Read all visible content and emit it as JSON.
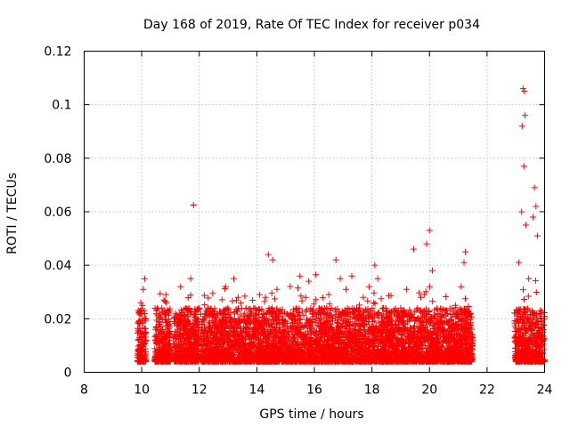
{
  "chart_data": {
    "type": "scatter",
    "title": "Day 168 of 2019, Rate Of TEC Index for receiver p034",
    "xlabel": "GPS time / hours",
    "ylabel": "ROTI / TECUs",
    "xlim": [
      8,
      24
    ],
    "ylim": [
      0,
      0.12
    ],
    "xticks": [
      8,
      10,
      12,
      14,
      16,
      18,
      20,
      22,
      24
    ],
    "yticks": [
      0,
      0.02,
      0.04,
      0.06,
      0.08,
      0.1,
      0.12
    ],
    "xtick_labels": [
      "8",
      "10",
      "12",
      "14",
      "16",
      "18",
      "20",
      "22",
      "24"
    ],
    "ytick_labels": [
      "0",
      "0.02",
      "0.04",
      "0.06",
      "0.08",
      "0.1",
      "0.12"
    ],
    "grid": true,
    "marker": "+",
    "color": "#ff0000",
    "series": [
      {
        "name": "ROTI",
        "points": [
          [
            9.9,
            0.008
          ],
          [
            9.95,
            0.015
          ],
          [
            10.0,
            0.022
          ],
          [
            10.05,
            0.031
          ],
          [
            10.1,
            0.035
          ],
          [
            10.15,
            0.012
          ],
          [
            10.5,
            0.011
          ],
          [
            10.6,
            0.018
          ],
          [
            10.7,
            0.024
          ],
          [
            10.85,
            0.026
          ],
          [
            10.95,
            0.009
          ],
          [
            11.2,
            0.014
          ],
          [
            11.35,
            0.032
          ],
          [
            11.5,
            0.021
          ],
          [
            11.7,
            0.035
          ],
          [
            11.8,
            0.0625
          ],
          [
            11.9,
            0.013
          ],
          [
            11.95,
            0.019
          ],
          [
            12.2,
            0.012
          ],
          [
            12.3,
            0.024
          ],
          [
            12.6,
            0.018
          ],
          [
            12.9,
            0.022
          ],
          [
            13.2,
            0.035
          ],
          [
            13.35,
            0.028
          ],
          [
            13.6,
            0.019
          ],
          [
            13.9,
            0.024
          ],
          [
            14.1,
            0.029
          ],
          [
            14.3,
            0.028
          ],
          [
            14.4,
            0.044
          ],
          [
            14.55,
            0.042
          ],
          [
            14.7,
            0.031
          ],
          [
            14.9,
            0.018
          ],
          [
            15.1,
            0.015
          ],
          [
            15.3,
            0.021
          ],
          [
            15.5,
            0.036
          ],
          [
            15.7,
            0.028
          ],
          [
            15.9,
            0.019
          ],
          [
            16.05,
            0.0365
          ],
          [
            16.2,
            0.022
          ],
          [
            16.5,
            0.029
          ],
          [
            16.75,
            0.042
          ],
          [
            16.9,
            0.035
          ],
          [
            17.1,
            0.031
          ],
          [
            17.3,
            0.036
          ],
          [
            17.5,
            0.021
          ],
          [
            17.7,
            0.028
          ],
          [
            17.9,
            0.032
          ],
          [
            18.1,
            0.04
          ],
          [
            18.2,
            0.035
          ],
          [
            18.4,
            0.024
          ],
          [
            18.6,
            0.022
          ],
          [
            18.8,
            0.018
          ],
          [
            19.0,
            0.024
          ],
          [
            19.2,
            0.031
          ],
          [
            19.45,
            0.046
          ],
          [
            19.7,
            0.028
          ],
          [
            19.9,
            0.048
          ],
          [
            20.0,
            0.053
          ],
          [
            20.1,
            0.038
          ],
          [
            20.3,
            0.022
          ],
          [
            20.6,
            0.019
          ],
          [
            20.9,
            0.025
          ],
          [
            21.1,
            0.032
          ],
          [
            21.2,
            0.041
          ],
          [
            21.25,
            0.045
          ],
          [
            21.4,
            0.015
          ],
          [
            23.0,
            0.012
          ],
          [
            23.1,
            0.041
          ],
          [
            23.2,
            0.06
          ],
          [
            23.25,
            0.106
          ],
          [
            23.3,
            0.105
          ],
          [
            23.32,
            0.096
          ],
          [
            23.22,
            0.092
          ],
          [
            23.28,
            0.077
          ],
          [
            23.35,
            0.055
          ],
          [
            23.45,
            0.035
          ],
          [
            23.6,
            0.058
          ],
          [
            23.65,
            0.069
          ],
          [
            23.7,
            0.062
          ],
          [
            23.75,
            0.051
          ],
          [
            23.8,
            0.022
          ],
          [
            23.9,
            0.018
          ],
          [
            23.95,
            0.012
          ]
        ]
      }
    ]
  }
}
